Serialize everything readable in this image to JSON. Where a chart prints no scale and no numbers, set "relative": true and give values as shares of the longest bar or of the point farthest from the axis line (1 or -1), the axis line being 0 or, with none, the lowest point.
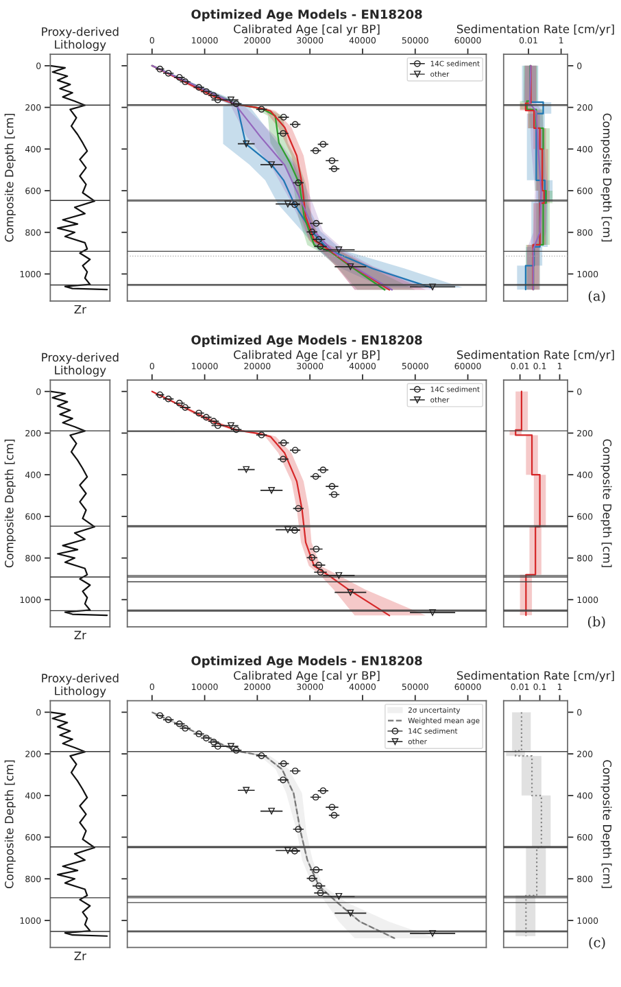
{
  "chart_data": [
    {
      "type": "line",
      "orientation": "horizontal",
      "relative": true,
      "title": "Proxy-derived\nLithology",
      "xlabel": "Zr",
      "ylabel": "Composite Depth [cm]",
      "ylim": [
        1130,
        -55
      ],
      "yticks": [
        0,
        200,
        400,
        600,
        800,
        1000
      ],
      "tick_labels": "y",
      "series": [
        {
          "color": "#111111",
          "x": [
            0,
            10,
            30,
            50,
            70,
            90,
            110,
            130,
            150,
            170,
            190,
            210,
            250,
            290,
            330,
            370,
            410,
            450,
            490,
            530,
            570,
            610,
            650,
            680,
            710,
            740,
            760,
            780,
            800,
            820,
            850,
            880,
            900,
            930,
            960,
            990,
            1020,
            1050,
            1060,
            1070,
            1075
          ],
          "values": [
            0,
            0.26,
            0.04,
            0.3,
            0.13,
            0.35,
            0.17,
            0.39,
            0.22,
            0.43,
            0.61,
            0.35,
            0.46,
            0.37,
            0.48,
            0.57,
            0.65,
            0.52,
            0.63,
            0.52,
            0.63,
            0.57,
            0.78,
            0.43,
            0.61,
            0.22,
            0.48,
            0.13,
            0.43,
            0.26,
            0.61,
            0.65,
            0.52,
            0.7,
            0.57,
            0.65,
            0.61,
            0.7,
            0.26,
            0.39,
            1
          ]
        }
      ],
      "ref_lines": [
        {
          "axis": "y",
          "value": 189,
          "color": "#333333"
        },
        {
          "axis": "y",
          "value": 647,
          "color": "#333333"
        },
        {
          "axis": "y",
          "value": 891,
          "color": "#333333"
        },
        {
          "axis": "y",
          "value": 1053,
          "color": "#333333"
        }
      ]
    },
    {
      "type": "line",
      "orientation": "horizontal",
      "title": "Optimized Age Models - EN18208",
      "xlabel": "Calibrated Age [cal yr BP]",
      "xlim": [
        -4700,
        63500
      ],
      "xticks": [
        0,
        10000,
        20000,
        30000,
        40000,
        50000,
        60000
      ],
      "ylim": [
        1130,
        -55
      ],
      "yticks": [
        0,
        200,
        400,
        600,
        800,
        1000
      ],
      "tick_labels": "x",
      "legend": "top right",
      "series": [
        {
          "color": "#1f77b4",
          "x": [
            0,
            185,
            194,
            375,
            475,
            550,
            667,
            794,
            884,
            974,
            1065
          ],
          "values": [
            0,
            16000,
            16200,
            17800,
            22700,
            25000,
            27100,
            30300,
            33600,
            41900,
            53000
          ],
          "lower": [
            0,
            14500,
            13500,
            13500,
            18500,
            21500,
            24000,
            28500,
            31500,
            36000,
            44000
          ],
          "upper": [
            0,
            17500,
            18500,
            24000,
            27000,
            28500,
            29500,
            32000,
            36000,
            48000,
            59000
          ]
        },
        {
          "color": "#2ca02c",
          "x": [
            0,
            185,
            205,
            240,
            370,
            466,
            567,
            725,
            861,
            895,
            963,
            1076
          ],
          "values": [
            0,
            16000,
            20800,
            23400,
            24100,
            26200,
            28000,
            28900,
            30800,
            34000,
            37700,
            44200
          ],
          "lower": [
            0,
            15000,
            19500,
            22000,
            22500,
            24800,
            26800,
            27800,
            29500,
            32000,
            35000,
            39000
          ],
          "upper": [
            0,
            17000,
            21800,
            24800,
            25800,
            27800,
            29200,
            30200,
            32000,
            36000,
            41000,
            50000
          ]
        },
        {
          "color": "#d62728",
          "x": [
            0,
            150,
            185,
            205,
            217,
            296,
            432,
            567,
            725,
            838,
            884,
            951,
            1076
          ],
          "values": [
            0,
            12000,
            16000,
            20800,
            22500,
            25200,
            27500,
            28500,
            29200,
            30800,
            33600,
            37300,
            45100
          ],
          "lower": [
            0,
            11000,
            15200,
            19800,
            21500,
            24000,
            26500,
            27500,
            28300,
            29800,
            32000,
            34500,
            38500
          ],
          "upper": [
            0,
            13000,
            16800,
            21800,
            23500,
            26500,
            28800,
            29800,
            30300,
            32000,
            35500,
            40500,
            52000
          ]
        },
        {
          "color": "#9467bd",
          "x": [
            0,
            185,
            205,
            341,
            477,
            658,
            794,
            895,
            963,
            1076
          ],
          "values": [
            0,
            16000,
            16400,
            20600,
            25200,
            28500,
            30800,
            34500,
            38200,
            45600
          ],
          "lower": [
            0,
            15000,
            15200,
            18000,
            22500,
            26500,
            29000,
            32000,
            35000,
            38500
          ],
          "upper": [
            0,
            17000,
            18000,
            23500,
            27500,
            30500,
            32500,
            37000,
            42000,
            54000
          ]
        },
        {
          "type": "scatter",
          "name": "14C sediment",
          "color": "#222222",
          "marker": "circle",
          "x": [
            16,
            36,
            56,
            77,
            104,
            124,
            143,
            164,
            183,
            209,
            247,
            282,
            325,
            377,
            408,
            456,
            495,
            562,
            667,
            757,
            798,
            834,
            868
          ],
          "values": [
            1500,
            3100,
            5200,
            6300,
            8900,
            10300,
            11700,
            12500,
            16000,
            20800,
            25000,
            27200,
            24900,
            32500,
            31100,
            34200,
            34600,
            27800,
            27100,
            31200,
            30400,
            31700,
            32000
          ],
          "errors": [
            800,
            1000,
            1000,
            1000,
            1000,
            1000,
            1000,
            1200,
            1000,
            1000,
            1000,
            1000,
            1000,
            1000,
            1000,
            1200,
            1000,
            1000,
            1000,
            1200,
            1000,
            1200,
            1200
          ]
        },
        {
          "type": "scatter",
          "name": "other",
          "color": "#222222",
          "marker": "triangle",
          "x": [
            164,
            375,
            475,
            664,
            884,
            965,
            1062
          ],
          "values": [
            15000,
            17900,
            22700,
            25800,
            35500,
            37700,
            53300
          ],
          "errors": [
            1400,
            1600,
            2100,
            2300,
            3000,
            3000,
            4300
          ]
        }
      ],
      "ref_lines": [
        {
          "axis": "y",
          "value": 187,
          "color": "#444444"
        },
        {
          "axis": "y",
          "value": 191,
          "color": "#444444"
        },
        {
          "axis": "y",
          "value": 645,
          "color": "#444444"
        },
        {
          "axis": "y",
          "value": 650,
          "color": "#444444"
        },
        {
          "axis": "y",
          "value": 891,
          "color": "#444444"
        },
        {
          "axis": "y",
          "value": 914,
          "color": "#aaaaaa",
          "line_style": "dotted"
        },
        {
          "axis": "y",
          "value": 1050,
          "color": "#444444"
        },
        {
          "axis": "y",
          "value": 1055,
          "color": "#444444"
        }
      ]
    },
    {
      "type": "step",
      "orientation": "horizontal",
      "log": "x",
      "xlabel": "Sedimentation Rate [cm/yr]",
      "ylabel": "Composite Depth [cm]",
      "xlim": [
        0.0003,
        2.5
      ],
      "xticks": [
        {
          "value": 0.01,
          "label": "0.01"
        },
        {
          "value": 1,
          "label": "1"
        }
      ],
      "ylim": [
        1130,
        -55
      ],
      "yticks": [
        0,
        200,
        400,
        600,
        800,
        1000
      ],
      "annotations": [
        "(a)"
      ],
      "series": [
        {
          "color": "#1f77b4",
          "x": [
            0,
            175,
            230,
            550,
            650,
            870,
            960,
            1075
          ],
          "values": [
            0.013,
            0.08,
            0.03,
            0.1,
            0.05,
            0.022,
            0.0067,
            0.0067
          ],
          "lower": [
            0.004,
            0.02,
            0.008,
            0.03,
            0.015,
            0.007,
            0.002,
            0.002
          ],
          "upper": [
            0.04,
            0.25,
            0.1,
            0.3,
            0.15,
            0.07,
            0.02,
            0.02
          ]
        },
        {
          "color": "#2ca02c",
          "x": [
            0,
            170,
            210,
            300,
            400,
            600,
            660,
            860,
            1075
          ],
          "values": [
            0.013,
            0.008,
            0.03,
            0.08,
            0.07,
            0.12,
            0.08,
            0.02,
            0.02
          ],
          "lower": [
            0.005,
            0.003,
            0.01,
            0.03,
            0.025,
            0.04,
            0.03,
            0.007,
            0.007
          ],
          "upper": [
            0.035,
            0.02,
            0.08,
            0.2,
            0.2,
            0.3,
            0.2,
            0.05,
            0.05
          ]
        },
        {
          "color": "#d62728",
          "x": [
            0,
            180,
            215,
            300,
            400,
            600,
            660,
            860,
            1075
          ],
          "values": [
            0.014,
            0.0067,
            0.022,
            0.05,
            0.07,
            0.09,
            0.05,
            0.019,
            0.019
          ],
          "lower": [
            0.006,
            0.003,
            0.009,
            0.02,
            0.03,
            0.04,
            0.02,
            0.008,
            0.008
          ],
          "upper": [
            0.03,
            0.015,
            0.05,
            0.12,
            0.16,
            0.2,
            0.12,
            0.045,
            0.045
          ]
        },
        {
          "type": "line",
          "color": "#9467bd",
          "x": [
            0,
            180,
            220,
            400,
            600,
            800,
            880,
            1075
          ],
          "values": [
            0.014,
            0.012,
            0.03,
            0.04,
            0.06,
            0.05,
            0.02,
            0.02
          ],
          "lower": [
            0.006,
            0.005,
            0.012,
            0.015,
            0.025,
            0.02,
            0.008,
            0.008
          ],
          "upper": [
            0.03,
            0.03,
            0.07,
            0.1,
            0.15,
            0.12,
            0.05,
            0.05
          ]
        }
      ],
      "ref_lines": [
        {
          "axis": "y",
          "value": 187,
          "color": "#444444"
        },
        {
          "axis": "y",
          "value": 191,
          "color": "#444444"
        },
        {
          "axis": "y",
          "value": 645,
          "color": "#444444"
        },
        {
          "axis": "y",
          "value": 650,
          "color": "#444444"
        },
        {
          "axis": "y",
          "value": 891,
          "color": "#444444"
        },
        {
          "axis": "y",
          "value": 914,
          "color": "#aaaaaa",
          "line_style": "dotted"
        },
        {
          "axis": "y",
          "value": 1050,
          "color": "#444444"
        },
        {
          "axis": "y",
          "value": 1055,
          "color": "#444444"
        }
      ]
    },
    {
      "type": "line",
      "orientation": "horizontal",
      "relative": true,
      "title": "Proxy-derived\nLithology",
      "xlabel": "Zr",
      "ylabel": "Composite Depth [cm]",
      "ylim": [
        1130,
        -55
      ],
      "yticks": [
        0,
        200,
        400,
        600,
        800,
        1000
      ],
      "tick_labels": "y",
      "series": [
        {
          "color": "#111111",
          "x": [
            0,
            10,
            30,
            50,
            70,
            90,
            110,
            130,
            150,
            170,
            190,
            210,
            250,
            290,
            330,
            370,
            410,
            450,
            490,
            530,
            570,
            610,
            650,
            680,
            710,
            740,
            760,
            780,
            800,
            820,
            850,
            880,
            900,
            930,
            960,
            990,
            1020,
            1050,
            1060,
            1070,
            1075
          ],
          "values": [
            0,
            0.26,
            0.04,
            0.3,
            0.13,
            0.35,
            0.17,
            0.39,
            0.22,
            0.43,
            0.61,
            0.35,
            0.46,
            0.37,
            0.48,
            0.57,
            0.65,
            0.52,
            0.63,
            0.52,
            0.63,
            0.57,
            0.78,
            0.43,
            0.61,
            0.22,
            0.48,
            0.13,
            0.43,
            0.26,
            0.61,
            0.65,
            0.52,
            0.7,
            0.57,
            0.65,
            0.61,
            0.7,
            0.26,
            0.39,
            1
          ]
        }
      ],
      "ref_lines": [
        {
          "axis": "y",
          "value": 189,
          "color": "#333333"
        },
        {
          "axis": "y",
          "value": 647,
          "color": "#333333"
        },
        {
          "axis": "y",
          "value": 891,
          "color": "#333333"
        },
        {
          "axis": "y",
          "value": 1053,
          "color": "#333333"
        }
      ]
    },
    {
      "type": "line",
      "orientation": "horizontal",
      "title": "Optimized Age Models - EN18208",
      "xlabel": "Calibrated Age [cal yr BP]",
      "xlim": [
        -4700,
        63500
      ],
      "xticks": [
        0,
        10000,
        20000,
        30000,
        40000,
        50000,
        60000
      ],
      "ylim": [
        1130,
        -55
      ],
      "yticks": [
        0,
        200,
        400,
        600,
        800,
        1000
      ],
      "tick_labels": "x",
      "legend": "top right",
      "series": [
        {
          "color": "#d62728",
          "x": [
            0,
            150,
            185,
            205,
            217,
            296,
            432,
            567,
            725,
            838,
            884,
            951,
            1076
          ],
          "values": [
            0,
            12000,
            16000,
            20800,
            22500,
            25200,
            27500,
            28500,
            29200,
            30800,
            33600,
            37300,
            45100
          ],
          "lower": [
            0,
            11000,
            15200,
            19800,
            21500,
            24000,
            26500,
            27500,
            28300,
            29800,
            32000,
            34500,
            38500
          ],
          "upper": [
            0,
            13000,
            16800,
            21800,
            23500,
            26500,
            28800,
            29800,
            30300,
            32000,
            35500,
            40500,
            52000
          ]
        },
        {
          "type": "scatter",
          "name": "14C sediment",
          "color": "#222222",
          "marker": "circle",
          "x": [
            16,
            36,
            56,
            77,
            104,
            124,
            143,
            164,
            183,
            209,
            247,
            282,
            325,
            377,
            408,
            456,
            495,
            562,
            667,
            757,
            798,
            834,
            868
          ],
          "values": [
            1500,
            3100,
            5200,
            6300,
            8900,
            10300,
            11700,
            12500,
            16000,
            20800,
            25000,
            27200,
            24900,
            32500,
            31100,
            34200,
            34600,
            27800,
            27100,
            31200,
            30400,
            31700,
            32000
          ],
          "errors": [
            800,
            1000,
            1000,
            1000,
            1000,
            1000,
            1000,
            1200,
            1000,
            1000,
            1000,
            1000,
            1000,
            1000,
            1000,
            1200,
            1000,
            1000,
            1000,
            1200,
            1000,
            1200,
            1200
          ]
        },
        {
          "type": "scatter",
          "name": "other",
          "color": "#222222",
          "marker": "triangle",
          "x": [
            164,
            375,
            475,
            664,
            884,
            965,
            1062
          ],
          "values": [
            15000,
            17900,
            22700,
            25800,
            35500,
            37700,
            53300
          ],
          "errors": [
            1400,
            1600,
            2100,
            2300,
            3000,
            3000,
            4300
          ]
        }
      ],
      "ref_lines": [
        {
          "axis": "y",
          "value": 189,
          "color": "#444444"
        },
        {
          "axis": "y",
          "value": 192,
          "color": "#444444"
        },
        {
          "axis": "y",
          "value": 645,
          "color": "#444444"
        },
        {
          "axis": "y",
          "value": 650,
          "color": "#444444"
        },
        {
          "axis": "y",
          "value": 884,
          "color": "#444444"
        },
        {
          "axis": "y",
          "value": 891,
          "color": "#444444"
        },
        {
          "axis": "y",
          "value": 914,
          "color": "#444444"
        },
        {
          "axis": "y",
          "value": 1050,
          "color": "#444444"
        },
        {
          "axis": "y",
          "value": 1055,
          "color": "#444444"
        }
      ]
    },
    {
      "type": "step",
      "orientation": "horizontal",
      "log": "x",
      "xlabel": "Sedimentation Rate [cm/yr]",
      "ylabel": "Composite Depth [cm]",
      "xlim": [
        0.0015,
        2.5
      ],
      "xticks": [
        {
          "value": 0.01,
          "label": "0.01"
        },
        {
          "value": 0.1,
          "label": "0.1"
        },
        {
          "value": 1,
          "label": "1"
        }
      ],
      "ylim": [
        1130,
        -55
      ],
      "yticks": [
        0,
        200,
        400,
        600,
        800,
        1000
      ],
      "annotations": [
        "(b)"
      ],
      "series": [
        {
          "color": "#d62728",
          "x": [
            0,
            185,
            210,
            400,
            650,
            880,
            1075
          ],
          "values": [
            0.012,
            0.006,
            0.04,
            0.1,
            0.06,
            0.02,
            0.02
          ],
          "lower": [
            0.006,
            0.003,
            0.02,
            0.05,
            0.03,
            0.01,
            0.01
          ],
          "upper": [
            0.025,
            0.012,
            0.08,
            0.2,
            0.12,
            0.04,
            0.04
          ]
        }
      ],
      "ref_lines": [
        {
          "axis": "y",
          "value": 189,
          "color": "#444444"
        },
        {
          "axis": "y",
          "value": 645,
          "color": "#444444"
        },
        {
          "axis": "y",
          "value": 650,
          "color": "#444444"
        },
        {
          "axis": "y",
          "value": 884,
          "color": "#444444"
        },
        {
          "axis": "y",
          "value": 891,
          "color": "#444444"
        },
        {
          "axis": "y",
          "value": 914,
          "color": "#444444"
        },
        {
          "axis": "y",
          "value": 1050,
          "color": "#444444"
        },
        {
          "axis": "y",
          "value": 1055,
          "color": "#444444"
        }
      ]
    },
    {
      "type": "line",
      "orientation": "horizontal",
      "relative": true,
      "title": "Proxy-derived\nLithology",
      "xlabel": "Zr",
      "ylabel": "Composite Depth [cm]",
      "ylim": [
        1130,
        -55
      ],
      "yticks": [
        0,
        200,
        400,
        600,
        800,
        1000
      ],
      "tick_labels": "y",
      "series": [
        {
          "color": "#111111",
          "x": [
            0,
            10,
            30,
            50,
            70,
            90,
            110,
            130,
            150,
            170,
            190,
            210,
            250,
            290,
            330,
            370,
            410,
            450,
            490,
            530,
            570,
            610,
            650,
            680,
            710,
            740,
            760,
            780,
            800,
            820,
            850,
            880,
            900,
            930,
            960,
            990,
            1020,
            1050,
            1060,
            1070,
            1075
          ],
          "values": [
            0,
            0.26,
            0.04,
            0.3,
            0.13,
            0.35,
            0.17,
            0.39,
            0.22,
            0.43,
            0.61,
            0.35,
            0.46,
            0.37,
            0.48,
            0.57,
            0.65,
            0.52,
            0.63,
            0.52,
            0.63,
            0.57,
            0.78,
            0.43,
            0.61,
            0.22,
            0.48,
            0.13,
            0.43,
            0.26,
            0.61,
            0.65,
            0.52,
            0.7,
            0.57,
            0.65,
            0.61,
            0.7,
            0.26,
            0.39,
            1
          ]
        }
      ],
      "ref_lines": [
        {
          "axis": "y",
          "value": 189,
          "color": "#333333"
        },
        {
          "axis": "y",
          "value": 647,
          "color": "#333333"
        },
        {
          "axis": "y",
          "value": 891,
          "color": "#333333"
        },
        {
          "axis": "y",
          "value": 1053,
          "color": "#333333"
        }
      ]
    },
    {
      "type": "line",
      "orientation": "horizontal",
      "title": "Optimized Age Models - EN18208",
      "xlabel": "Calibrated Age [cal yr BP]",
      "xlim": [
        -4700,
        63500
      ],
      "xticks": [
        0,
        10000,
        20000,
        30000,
        40000,
        50000,
        60000
      ],
      "ylim": [
        1130,
        -55
      ],
      "yticks": [
        0,
        200,
        400,
        600,
        800,
        1000
      ],
      "tick_labels": "x",
      "legend": "top right",
      "series": [
        {
          "name": "2σ uncertainty",
          "color": "#c4c4c4",
          "x": [
            0,
            186,
            211,
            274,
            389,
            571,
            709,
            834,
            914,
            1006,
            1086
          ],
          "values": [
            0,
            16000,
            21500,
            24700,
            26900,
            28200,
            29500,
            31700,
            35200,
            39500,
            46100
          ],
          "lower": [
            0,
            15500,
            20500,
            23500,
            25500,
            27500,
            28500,
            30500,
            33000,
            35500,
            38500
          ],
          "upper": [
            0,
            16500,
            22500,
            26000,
            28500,
            29300,
            30500,
            32500,
            37000,
            45000,
            54000
          ]
        },
        {
          "name": "Weighted mean age",
          "color": "#777777",
          "line_style": "dashed",
          "x": [
            0,
            186,
            211,
            274,
            389,
            571,
            709,
            834,
            914,
            1006,
            1086
          ],
          "values": [
            0,
            16000,
            21500,
            24700,
            26900,
            28200,
            29500,
            31700,
            35200,
            39500,
            46100
          ]
        },
        {
          "type": "scatter",
          "name": "14C sediment",
          "color": "#222222",
          "marker": "circle",
          "x": [
            16,
            36,
            56,
            77,
            104,
            124,
            143,
            164,
            183,
            209,
            247,
            282,
            325,
            377,
            408,
            456,
            495,
            562,
            667,
            757,
            798,
            834,
            868
          ],
          "values": [
            1500,
            3100,
            5200,
            6300,
            8900,
            10300,
            11700,
            12500,
            16000,
            20800,
            25000,
            27200,
            24900,
            32500,
            31100,
            34200,
            34600,
            27800,
            27100,
            31200,
            30400,
            31700,
            32000
          ],
          "errors": [
            800,
            1000,
            1000,
            1000,
            1000,
            1000,
            1000,
            1200,
            1000,
            1000,
            1000,
            1000,
            1000,
            1000,
            1000,
            1200,
            1000,
            1000,
            1000,
            1200,
            1000,
            1200,
            1200
          ]
        },
        {
          "type": "scatter",
          "name": "other",
          "color": "#222222",
          "marker": "triangle",
          "x": [
            164,
            375,
            475,
            664,
            884,
            965,
            1062
          ],
          "values": [
            15000,
            17900,
            22700,
            25800,
            35500,
            37700,
            53300
          ],
          "errors": [
            1400,
            1600,
            2100,
            2300,
            3000,
            3000,
            4300
          ]
        }
      ],
      "ref_lines": [
        {
          "axis": "y",
          "value": 189,
          "color": "#444444"
        },
        {
          "axis": "y",
          "value": 645,
          "color": "#444444"
        },
        {
          "axis": "y",
          "value": 650,
          "color": "#444444"
        },
        {
          "axis": "y",
          "value": 884,
          "color": "#444444"
        },
        {
          "axis": "y",
          "value": 891,
          "color": "#444444"
        },
        {
          "axis": "y",
          "value": 914,
          "color": "#444444"
        },
        {
          "axis": "y",
          "value": 1050,
          "color": "#444444"
        },
        {
          "axis": "y",
          "value": 1055,
          "color": "#444444"
        }
      ]
    },
    {
      "type": "step",
      "orientation": "horizontal",
      "log": "x",
      "xlabel": "Sedimentation Rate [cm/yr]",
      "ylabel": "Composite Depth [cm]",
      "xlim": [
        0.0015,
        2.5
      ],
      "xticks": [
        {
          "value": 0.01,
          "label": "0.01"
        },
        {
          "value": 0.1,
          "label": "0.1"
        },
        {
          "value": 1,
          "label": "1"
        }
      ],
      "ylim": [
        1130,
        -55
      ],
      "yticks": [
        0,
        200,
        400,
        600,
        800,
        1000
      ],
      "annotations": [
        "(c)"
      ],
      "series": [
        {
          "color": "#888888",
          "line_style": "dotted",
          "x": [
            0,
            185,
            210,
            400,
            650,
            880,
            1075
          ],
          "values": [
            0.012,
            0.006,
            0.04,
            0.12,
            0.07,
            0.02,
            0.02
          ],
          "lower": [
            0.004,
            0.002,
            0.012,
            0.04,
            0.02,
            0.006,
            0.006
          ],
          "upper": [
            0.035,
            0.018,
            0.12,
            0.35,
            0.2,
            0.06,
            0.06
          ]
        }
      ],
      "ref_lines": [
        {
          "axis": "y",
          "value": 189,
          "color": "#444444"
        },
        {
          "axis": "y",
          "value": 645,
          "color": "#444444"
        },
        {
          "axis": "y",
          "value": 650,
          "color": "#444444"
        },
        {
          "axis": "y",
          "value": 884,
          "color": "#444444"
        },
        {
          "axis": "y",
          "value": 891,
          "color": "#444444"
        },
        {
          "axis": "y",
          "value": 914,
          "color": "#444444"
        },
        {
          "axis": "y",
          "value": 1050,
          "color": "#444444"
        },
        {
          "axis": "y",
          "value": 1055,
          "color": "#444444"
        }
      ]
    }
  ]
}
